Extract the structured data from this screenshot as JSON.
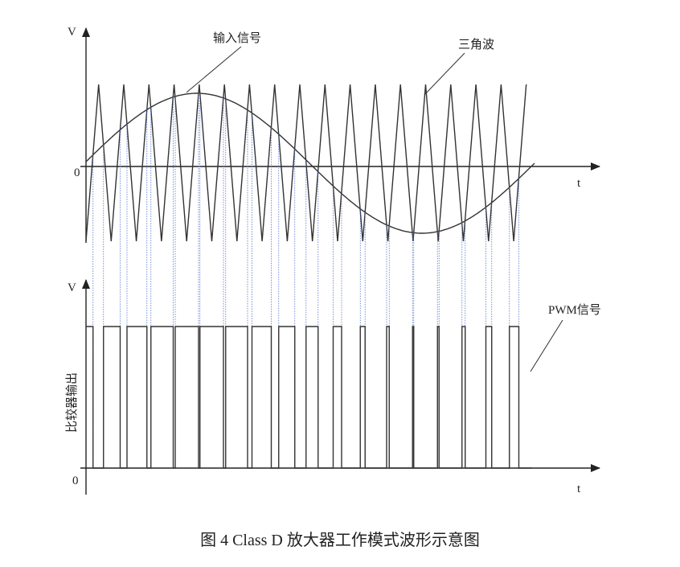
{
  "top": {
    "y_label": "V",
    "origin": "0",
    "x_label": "t",
    "input_label": "输入信号",
    "triangle_label": "三角波"
  },
  "bottom": {
    "y_label": "V",
    "origin": "0",
    "x_label": "t",
    "pwm_label": "PWM信号",
    "side_label": "比较器输出"
  },
  "caption": "图 4 Class D 放大器工作模式波形示意图"
}
